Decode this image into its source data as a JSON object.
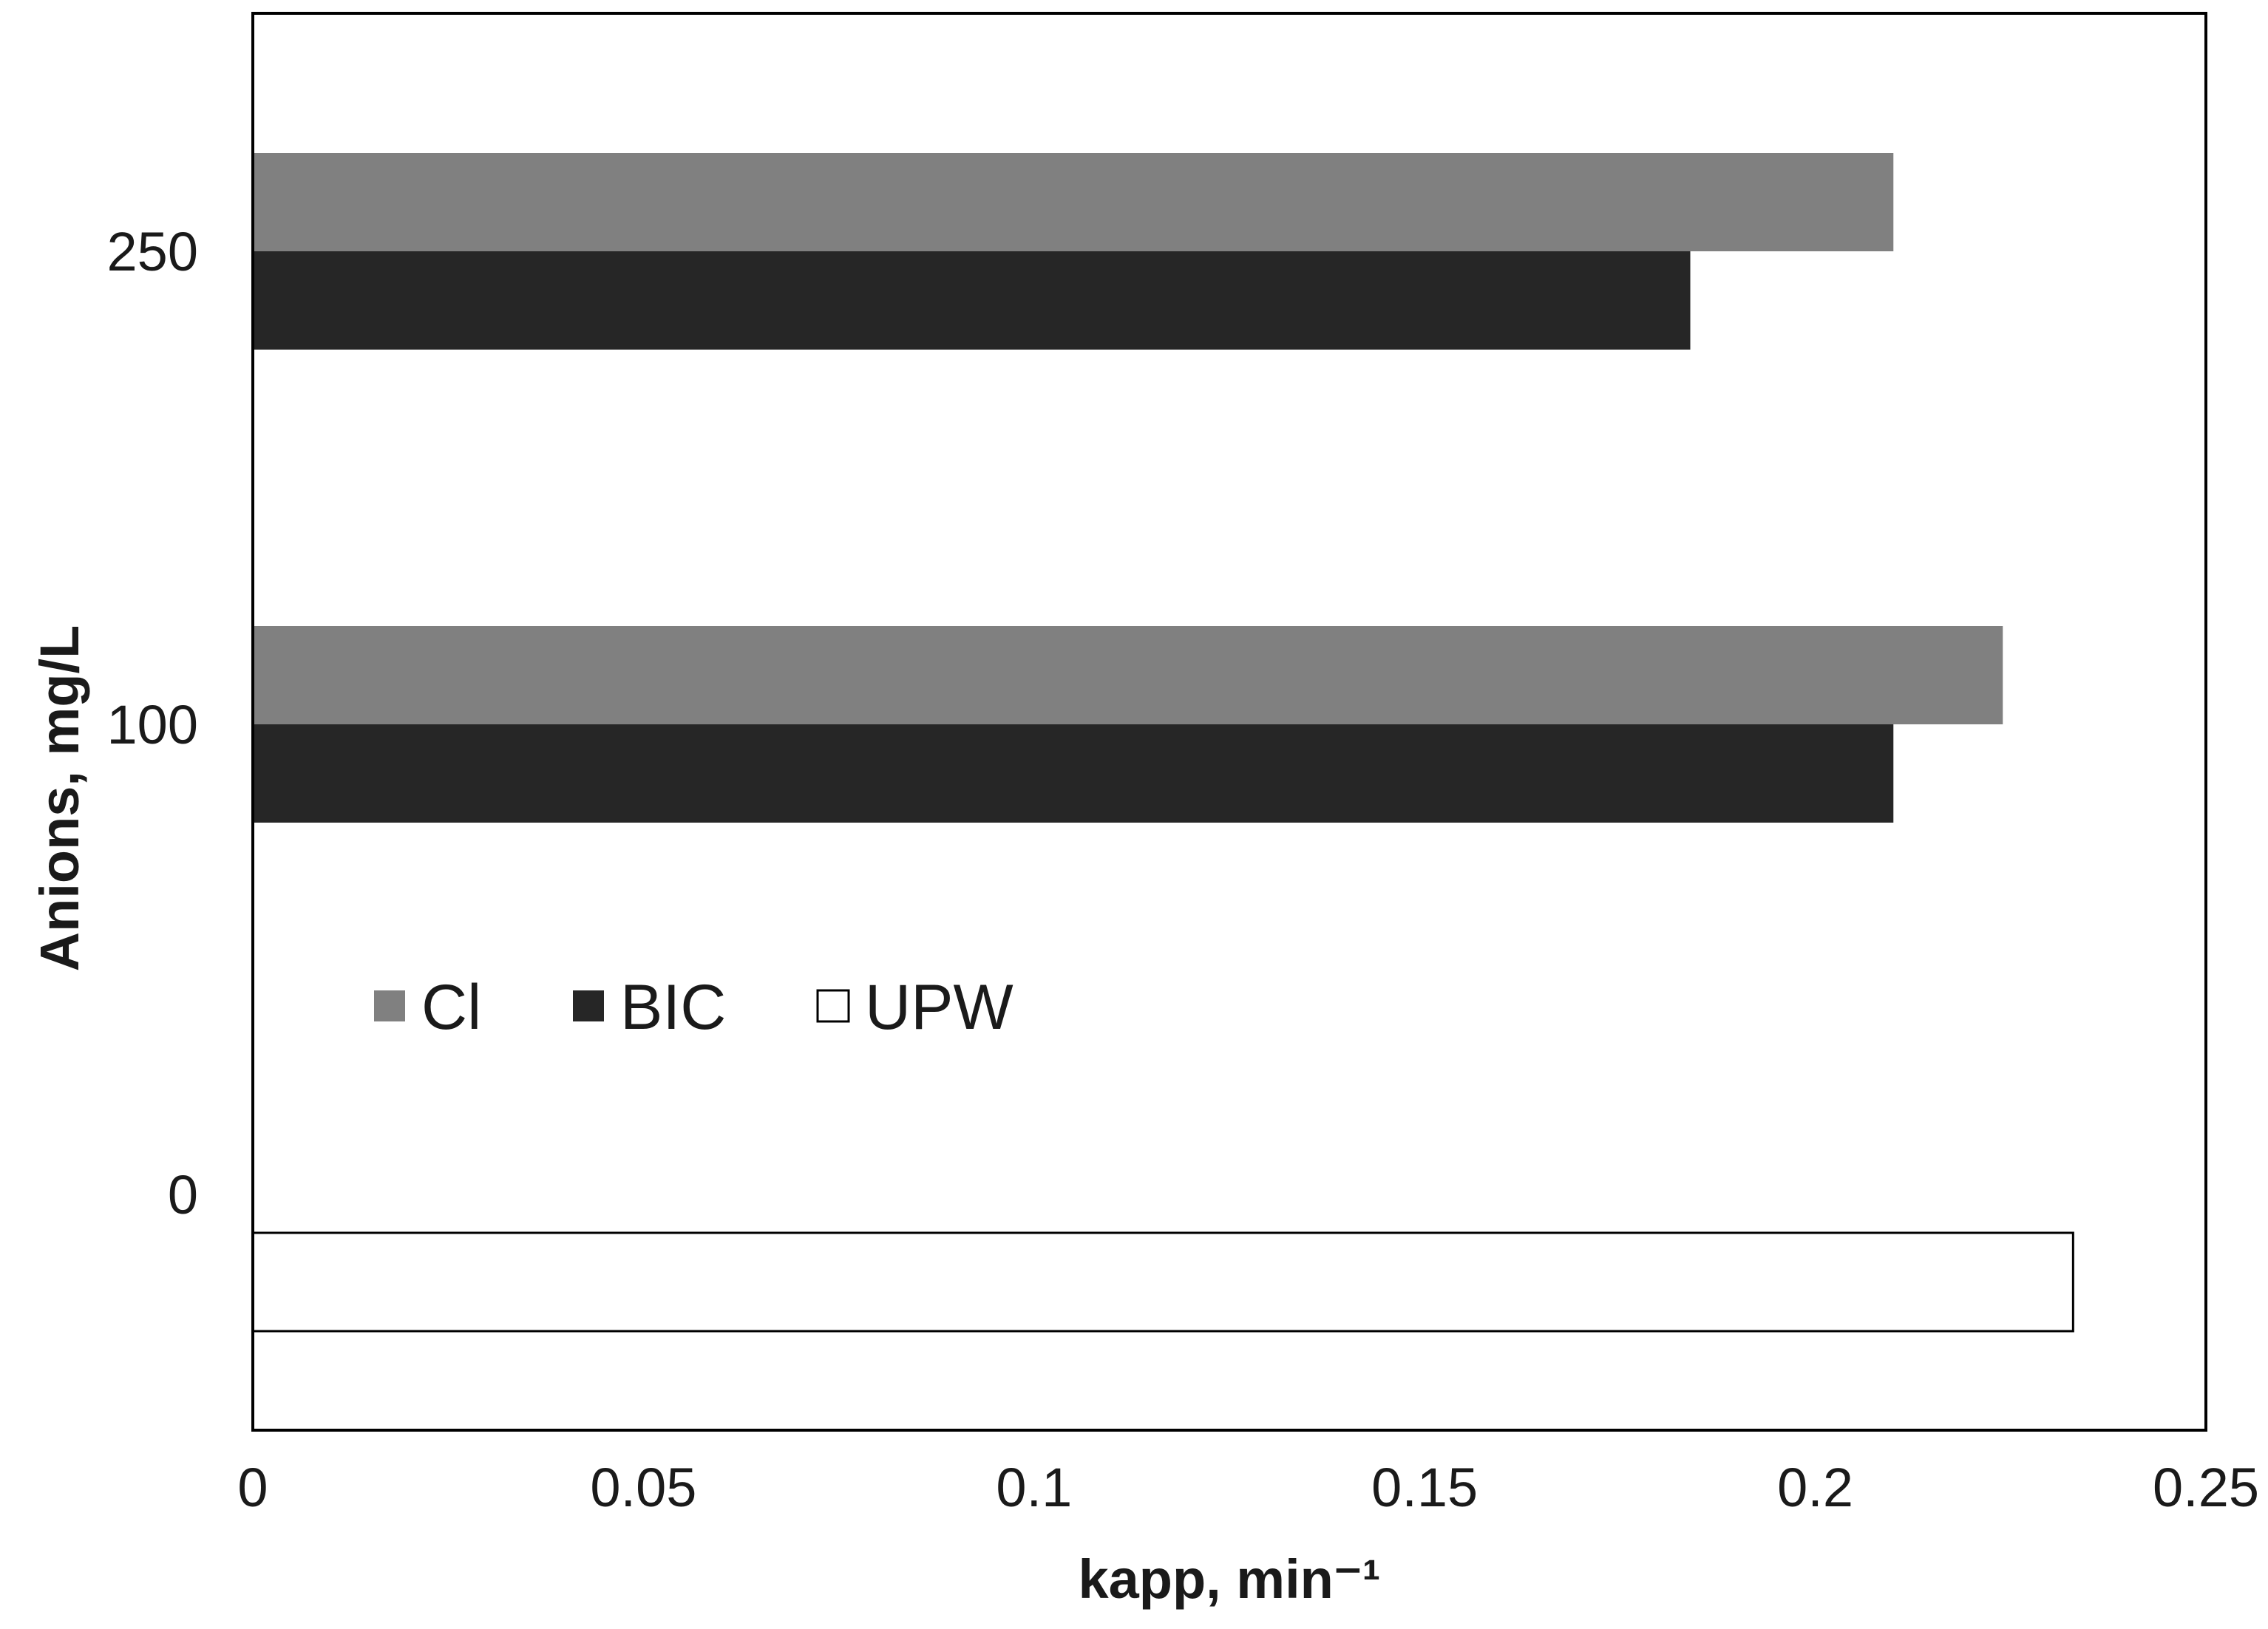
{
  "chart_data": {
    "type": "bar",
    "orientation": "horizontal",
    "categories": [
      "0",
      "100",
      "250"
    ],
    "series": [
      {
        "name": "Cl",
        "color": "#808080",
        "values": [
          null,
          0.224,
          0.21
        ]
      },
      {
        "name": "BIC",
        "color": "#262626",
        "values": [
          null,
          0.21,
          0.184
        ]
      },
      {
        "name": "UPW",
        "color": "#ffffff",
        "values": [
          0.233,
          null,
          null
        ]
      }
    ],
    "xlabel": "kapp, min⁻¹",
    "ylabel": "Anions, mg/L",
    "xlim": [
      0,
      0.25
    ],
    "xticks": [
      "0",
      "0.05",
      "0.1",
      "0.15",
      "0.2",
      "0.25"
    ],
    "grid": false,
    "legend_position": "inside-left"
  }
}
